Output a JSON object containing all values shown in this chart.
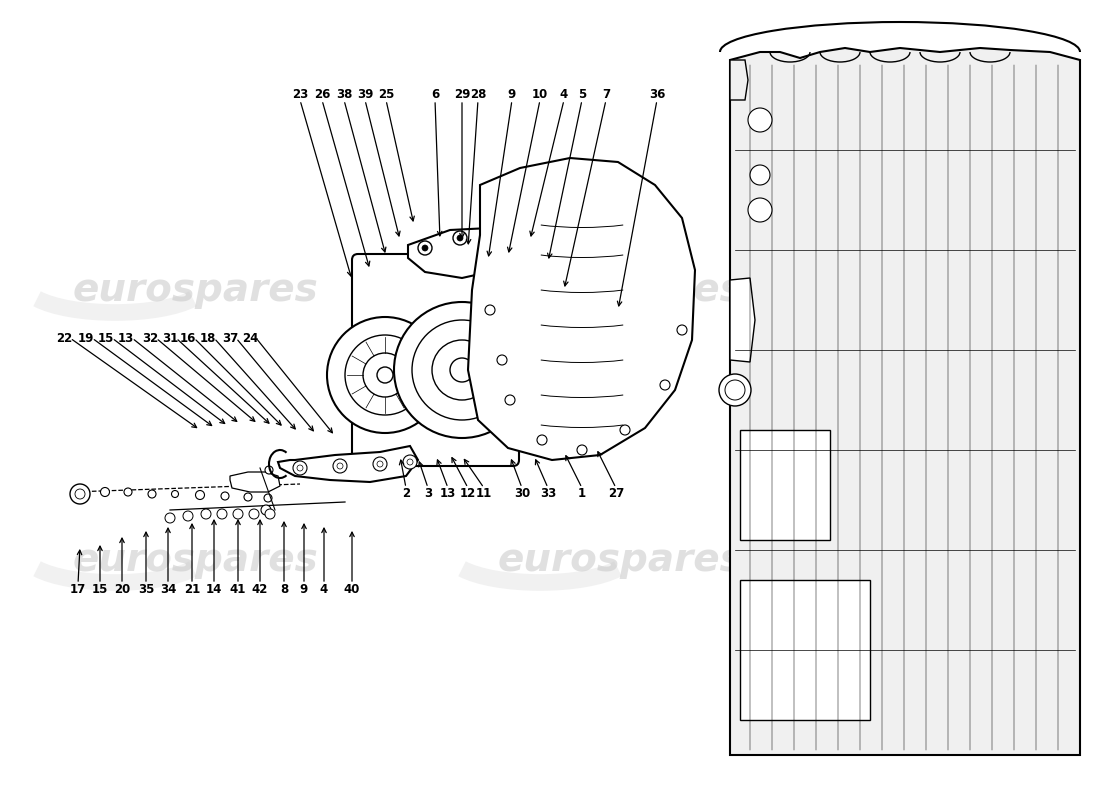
{
  "bg_color": "#ffffff",
  "lc": "#000000",
  "wm_color": "#c8c8c8",
  "figsize": [
    11.0,
    8.0
  ],
  "dpi": 100,
  "top_labels": [
    "23",
    "26",
    "38",
    "39",
    "25",
    "6",
    "29",
    "28",
    "9",
    "10",
    "4",
    "5",
    "7",
    "36"
  ],
  "top_lx": [
    300,
    322,
    344,
    365,
    386,
    435,
    462,
    478,
    512,
    540,
    564,
    582,
    606,
    657
  ],
  "top_ly": [
    88,
    88,
    88,
    88,
    88,
    88,
    88,
    88,
    88,
    88,
    88,
    88,
    88,
    88
  ],
  "top_tips_x": [
    352,
    370,
    386,
    400,
    414,
    440,
    462,
    468,
    488,
    508,
    530,
    548,
    564,
    618
  ],
  "top_tips_y": [
    280,
    270,
    256,
    240,
    225,
    240,
    242,
    248,
    260,
    256,
    240,
    262,
    290,
    310
  ],
  "left_labels": [
    "22",
    "19",
    "15",
    "13",
    "32",
    "31",
    "16",
    "18",
    "37",
    "24"
  ],
  "left_lx": [
    56,
    78,
    98,
    118,
    142,
    162,
    180,
    200,
    222,
    242
  ],
  "left_ly": [
    338,
    338,
    338,
    338,
    338,
    338,
    338,
    338,
    338,
    338
  ],
  "left_tips_x": [
    200,
    215,
    228,
    240,
    258,
    272,
    284,
    298,
    316,
    335
  ],
  "left_tips_y": [
    430,
    428,
    426,
    424,
    424,
    426,
    428,
    432,
    434,
    436
  ],
  "bc_labels": [
    "2",
    "3",
    "13",
    "12",
    "11",
    "30",
    "33",
    "1",
    "27"
  ],
  "bc_lx": [
    406,
    428,
    448,
    468,
    484,
    522,
    548,
    582,
    616
  ],
  "bc_ly": [
    500,
    500,
    500,
    500,
    500,
    500,
    500,
    500,
    500
  ],
  "bc_tips_x": [
    400,
    418,
    436,
    450,
    462,
    510,
    534,
    564,
    596
  ],
  "bc_tips_y": [
    456,
    458,
    456,
    454,
    456,
    456,
    456,
    452,
    448
  ],
  "bl_labels": [
    "17",
    "15",
    "20",
    "35",
    "34",
    "21",
    "14",
    "41",
    "42",
    "8",
    "9",
    "4",
    "40"
  ],
  "bl_lx": [
    78,
    100,
    122,
    146,
    168,
    192,
    214,
    238,
    260,
    284,
    304,
    324,
    352
  ],
  "bl_ly": [
    596,
    596,
    596,
    596,
    596,
    596,
    596,
    596,
    596,
    596,
    596,
    596,
    596
  ],
  "bl_tips_x": [
    80,
    100,
    122,
    146,
    168,
    192,
    214,
    238,
    260,
    284,
    304,
    324,
    352
  ],
  "bl_tips_y": [
    546,
    542,
    534,
    528,
    524,
    520,
    516,
    516,
    516,
    518,
    520,
    524,
    528
  ]
}
